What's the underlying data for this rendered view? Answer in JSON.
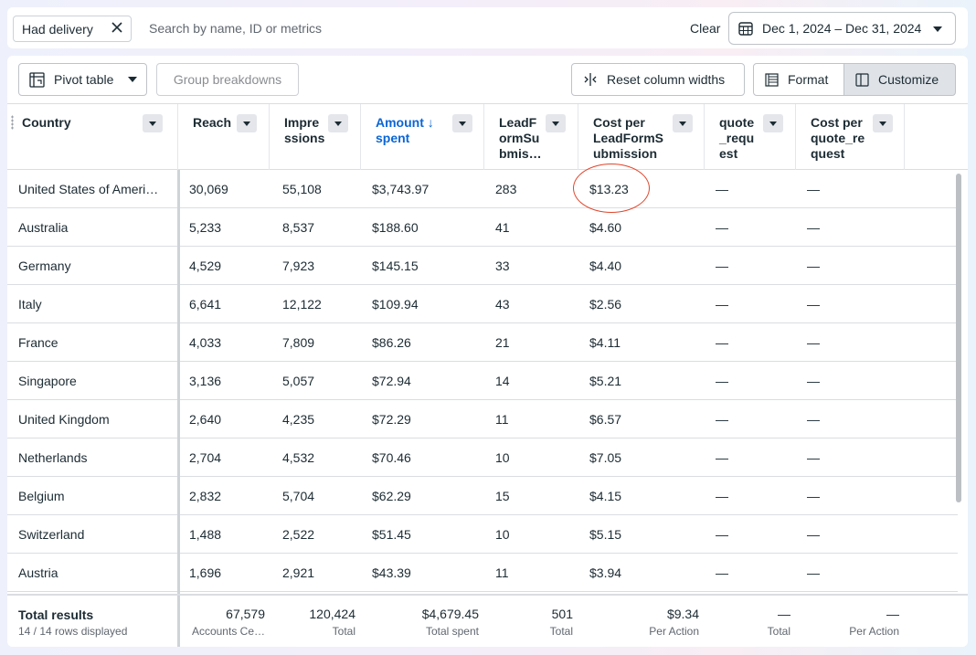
{
  "filter": {
    "chip_label": "Had delivery",
    "search_placeholder": "Search by name, ID or metrics",
    "clear_label": "Clear"
  },
  "date_range": {
    "label": "Dec 1, 2024 – Dec 31, 2024"
  },
  "toolbar": {
    "pivot_label": "Pivot table",
    "group_label": "Group breakdowns",
    "reset_label": "Reset column widths",
    "format_label": "Format",
    "customize_label": "Customize"
  },
  "columns": [
    {
      "label": "Country"
    },
    {
      "label": "Reach"
    },
    {
      "label": "Impre\nssions"
    },
    {
      "label": "Amount ↓\nspent"
    },
    {
      "label": "LeadF\normSu\nbmis…"
    },
    {
      "label": "Cost per\nLeadFormS\nubmission"
    },
    {
      "label": "quote\n_requ\nest"
    },
    {
      "label": "Cost per\nquote_re\nquest"
    }
  ],
  "rows": [
    [
      "United States of Ameri…",
      "30,069",
      "55,108",
      "$3,743.97",
      "283",
      "$13.23",
      "—",
      "—"
    ],
    [
      "Australia",
      "5,233",
      "8,537",
      "$188.60",
      "41",
      "$4.60",
      "—",
      "—"
    ],
    [
      "Germany",
      "4,529",
      "7,923",
      "$145.15",
      "33",
      "$4.40",
      "—",
      "—"
    ],
    [
      "Italy",
      "6,641",
      "12,122",
      "$109.94",
      "43",
      "$2.56",
      "—",
      "—"
    ],
    [
      "France",
      "4,033",
      "7,809",
      "$86.26",
      "21",
      "$4.11",
      "—",
      "—"
    ],
    [
      "Singapore",
      "3,136",
      "5,057",
      "$72.94",
      "14",
      "$5.21",
      "—",
      "—"
    ],
    [
      "United Kingdom",
      "2,640",
      "4,235",
      "$72.29",
      "11",
      "$6.57",
      "—",
      "—"
    ],
    [
      "Netherlands",
      "2,704",
      "4,532",
      "$70.46",
      "10",
      "$7.05",
      "—",
      "—"
    ],
    [
      "Belgium",
      "2,832",
      "5,704",
      "$62.29",
      "15",
      "$4.15",
      "—",
      "—"
    ],
    [
      "Switzerland",
      "1,488",
      "2,522",
      "$51.45",
      "10",
      "$5.15",
      "—",
      "—"
    ],
    [
      "Austria",
      "1,696",
      "2,921",
      "$43.39",
      "11",
      "$3.94",
      "—",
      "—"
    ]
  ],
  "footer": {
    "title": "Total results",
    "subtitle": "14 / 14 rows displayed",
    "totals": [
      {
        "value": "67,579",
        "sub": "Accounts Ce…"
      },
      {
        "value": "120,424",
        "sub": "Total"
      },
      {
        "value": "$4,679.45",
        "sub": "Total spent"
      },
      {
        "value": "501",
        "sub": "Total"
      },
      {
        "value": "$9.34",
        "sub": "Per Action"
      },
      {
        "value": "—",
        "sub": "Total"
      },
      {
        "value": "—",
        "sub": "Per Action"
      }
    ]
  },
  "colors": {
    "accent": "#0a66d6",
    "highlight_circle": "#e0452b"
  }
}
